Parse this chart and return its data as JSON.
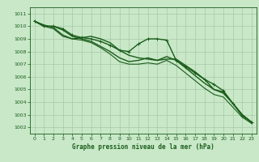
{
  "title": "Graphe pression niveau de la mer (hPa)",
  "background_color": "#c8e8c8",
  "grid_color": "#a8c8a8",
  "line_color": "#1a5c1a",
  "xlim": [
    -0.5,
    23.5
  ],
  "ylim": [
    1001.5,
    1011.5
  ],
  "yticks": [
    1002,
    1003,
    1004,
    1005,
    1006,
    1007,
    1008,
    1009,
    1010,
    1011
  ],
  "xticks": [
    0,
    1,
    2,
    3,
    4,
    5,
    6,
    7,
    8,
    9,
    10,
    11,
    12,
    13,
    14,
    15,
    16,
    17,
    18,
    19,
    20,
    21,
    22,
    23
  ],
  "series": [
    {
      "x": [
        0,
        1,
        2,
        3,
        4,
        5,
        6,
        7,
        8,
        9,
        10,
        11,
        12,
        13,
        14,
        15,
        16,
        17,
        18,
        19,
        20,
        21,
        22,
        23
      ],
      "y": [
        1010.4,
        1010.0,
        1010.0,
        1009.8,
        1009.3,
        1009.1,
        1009.0,
        1008.8,
        1008.5,
        1008.1,
        1008.0,
        1008.6,
        1009.0,
        1009.0,
        1008.9,
        1007.3,
        1006.8,
        1006.3,
        1005.8,
        1005.4,
        1004.9,
        1003.9,
        1002.9,
        1002.4
      ],
      "marker": true,
      "linewidth": 1.0
    },
    {
      "x": [
        0,
        1,
        2,
        3,
        4,
        5,
        6,
        7,
        8,
        9,
        10,
        11,
        12,
        13,
        14,
        15,
        16,
        17,
        18,
        19,
        20,
        21,
        22,
        23
      ],
      "y": [
        1010.4,
        1010.0,
        1010.0,
        1009.7,
        1009.2,
        1009.0,
        1008.8,
        1008.4,
        1008.0,
        1007.5,
        1007.2,
        1007.3,
        1007.5,
        1007.3,
        1007.6,
        1007.3,
        1006.7,
        1006.1,
        1005.5,
        1005.0,
        1004.8,
        1003.9,
        1003.0,
        1002.4
      ],
      "marker": false,
      "linewidth": 1.0
    },
    {
      "x": [
        0,
        1,
        2,
        3,
        4,
        5,
        6,
        7,
        8,
        9,
        10,
        11,
        12,
        13,
        14,
        15,
        16,
        17,
        18,
        19,
        20,
        21,
        22,
        23
      ],
      "y": [
        1010.4,
        1010.0,
        1009.8,
        1009.2,
        1009.0,
        1008.9,
        1008.7,
        1008.3,
        1007.8,
        1007.2,
        1007.0,
        1007.0,
        1007.1,
        1007.0,
        1007.3,
        1006.9,
        1006.3,
        1005.7,
        1005.1,
        1004.6,
        1004.4,
        1003.6,
        1002.8,
        1002.3
      ],
      "marker": false,
      "linewidth": 0.8
    },
    {
      "x": [
        0,
        1,
        2,
        3,
        4,
        5,
        6,
        7,
        8,
        9,
        10,
        11,
        12,
        13,
        14,
        15,
        16,
        17,
        18,
        19,
        20,
        21,
        22,
        23
      ],
      "y": [
        1010.4,
        1010.1,
        1009.9,
        1009.3,
        1009.0,
        1009.1,
        1009.2,
        1009.0,
        1008.7,
        1008.1,
        1007.7,
        1007.5,
        1007.4,
        1007.3,
        1007.4,
        1007.4,
        1006.9,
        1006.4,
        1005.8,
        1005.0,
        1004.7,
        1003.9,
        1003.0,
        1002.4
      ],
      "marker": false,
      "linewidth": 1.0
    }
  ]
}
